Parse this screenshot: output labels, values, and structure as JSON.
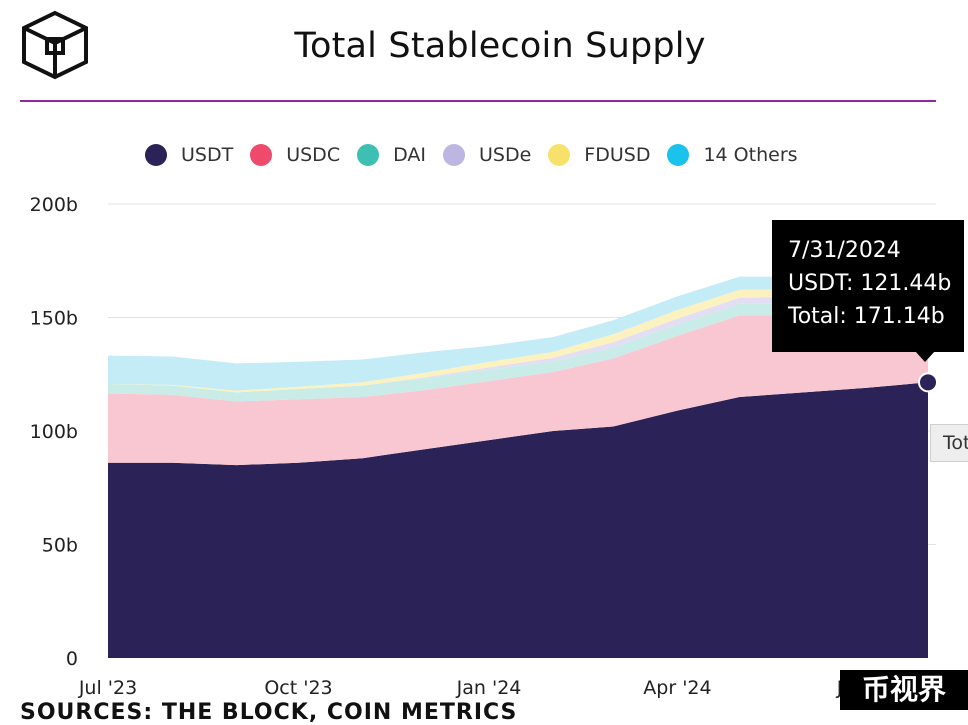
{
  "title": "Total Stablecoin Supply",
  "legend": [
    {
      "label": "USDT",
      "color": "#2b2257"
    },
    {
      "label": "USDC",
      "color": "#ef4a6c"
    },
    {
      "label": "DAI",
      "color": "#3dbfb4"
    },
    {
      "label": "USDe",
      "color": "#bdb6e3"
    },
    {
      "label": "FDUSD",
      "color": "#f7e16a"
    },
    {
      "label": "14 Others",
      "color": "#19c3ec"
    }
  ],
  "tooltip": {
    "date": "7/31/2024",
    "line1": "USDT: 121.44b",
    "line2": "Total: 171.14b",
    "secondary": "Tot"
  },
  "sources": "SOURCES: THE BLOCK, COIN METRICS",
  "watermark": "币视界",
  "chart_data": {
    "type": "area",
    "stacked": true,
    "title": "Total Stablecoin Supply",
    "x_ticks": [
      "Jul '23",
      "Oct '23",
      "Jan '24",
      "Apr '24",
      "Jul '24"
    ],
    "y_ticks": [
      "0",
      "50b",
      "100b",
      "150b",
      "200b"
    ],
    "ylim": [
      0,
      200
    ],
    "y_unit": "b",
    "grid": true,
    "legend_position": "top",
    "x": [
      "2023-07-01",
      "2023-08-01",
      "2023-09-01",
      "2023-10-01",
      "2023-11-01",
      "2023-12-01",
      "2024-01-01",
      "2024-02-01",
      "2024-03-01",
      "2024-04-01",
      "2024-05-01",
      "2024-06-01",
      "2024-07-01",
      "2024-07-31"
    ],
    "series": [
      {
        "name": "USDT",
        "color": "#2b2257",
        "values": [
          86,
          86,
          85,
          86,
          88,
          92,
          96,
          100,
          102,
          109,
          115,
          117,
          119,
          121.44
        ]
      },
      {
        "name": "USDC",
        "color": "#f9c7d2",
        "values": [
          30.5,
          30,
          28,
          28,
          27,
          26,
          26,
          26,
          30,
          33,
          36,
          34,
          33.5,
          33.3
        ]
      },
      {
        "name": "DAI",
        "color": "#c9ece8",
        "values": [
          4.2,
          4.0,
          4.0,
          4.5,
          5.0,
          5.2,
          5.0,
          4.8,
          4.8,
          5.0,
          5.0,
          5.0,
          5.0,
          5.1
        ]
      },
      {
        "name": "USDe",
        "color": "#e3def3",
        "values": [
          0,
          0,
          0,
          0,
          0,
          0.5,
          1.0,
          1.5,
          2.3,
          2.5,
          2.7,
          3.0,
          3.1,
          3.2
        ]
      },
      {
        "name": "FDUSD",
        "color": "#fbf2c0",
        "values": [
          0,
          0.3,
          0.8,
          1.0,
          1.5,
          2.0,
          2.5,
          2.6,
          3.5,
          3.8,
          3.5,
          3.5,
          3.2,
          3.0
        ]
      },
      {
        "name": "14 Others",
        "color": "#c4ecf7",
        "values": [
          12.5,
          12.5,
          12,
          11,
          10,
          9,
          7,
          6.5,
          6.2,
          6,
          5.8,
          5.5,
          5.3,
          5.1
        ]
      }
    ],
    "highlight": {
      "date": "7/31/2024",
      "series": "USDT",
      "value": 121.44,
      "total": 171.14
    }
  }
}
